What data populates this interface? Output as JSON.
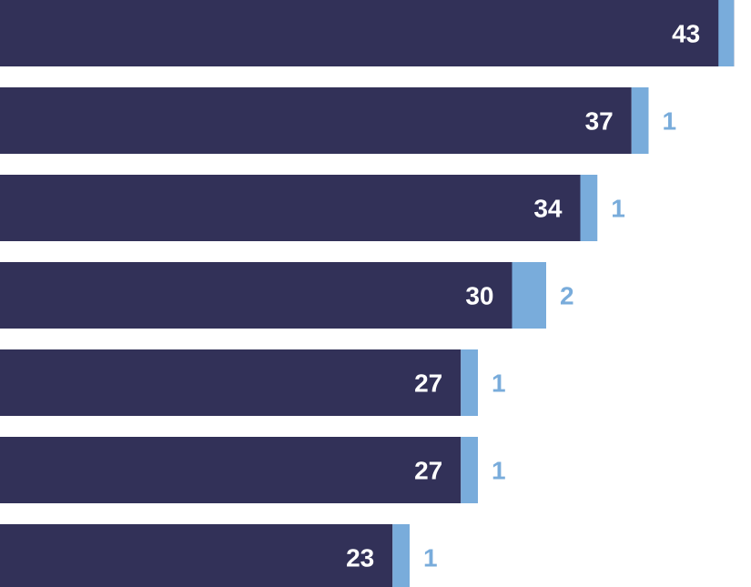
{
  "chart_data": {
    "type": "bar",
    "orientation": "horizontal",
    "stacked": true,
    "categories": [
      "",
      "",
      "",
      "",
      "",
      "",
      ""
    ],
    "series": [
      {
        "values": [
          43,
          37,
          34,
          30,
          27,
          27,
          23
        ],
        "color": "#323158",
        "label_color": "#ffffff"
      },
      {
        "values": [
          null,
          1,
          1,
          2,
          1,
          1,
          1
        ],
        "color": "#79acdb",
        "label_color": "#79acdb"
      }
    ],
    "xlim": [
      0,
      44
    ],
    "grid": false,
    "legend": "none"
  }
}
